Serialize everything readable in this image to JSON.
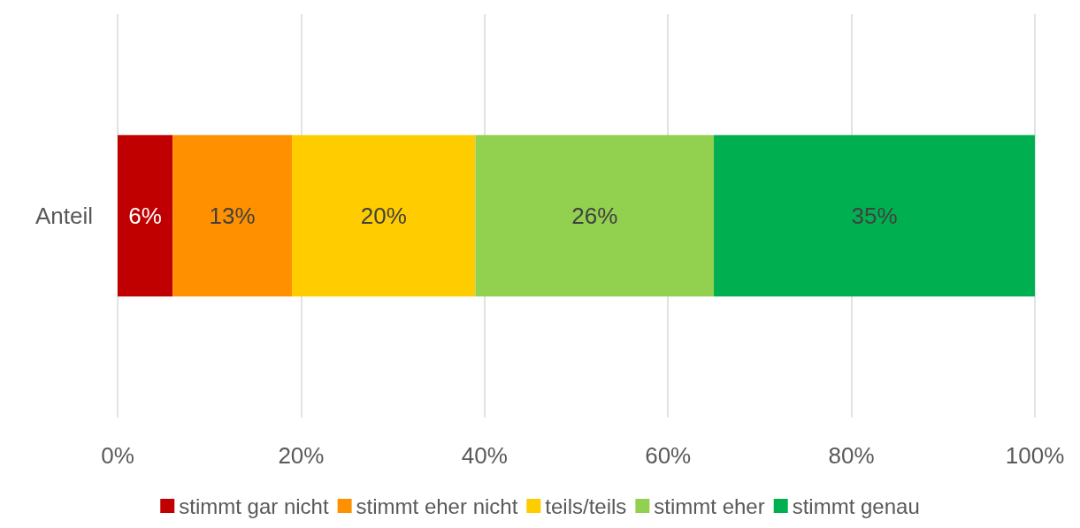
{
  "chart_data": {
    "type": "bar",
    "orientation": "horizontal",
    "stacked": true,
    "categories": [
      "Anteil"
    ],
    "series": [
      {
        "name": "stimmt gar nicht",
        "color": "#c00000",
        "values": [
          6
        ],
        "value_labels": [
          "6%"
        ]
      },
      {
        "name": "stimmt eher nicht",
        "color": "#ff9100",
        "values": [
          13
        ],
        "value_labels": [
          "13%"
        ]
      },
      {
        "name": "teils/teils",
        "color": "#ffcc00",
        "values": [
          20
        ],
        "value_labels": [
          "20%"
        ]
      },
      {
        "name": "stimmt eher",
        "color": "#92d050",
        "values": [
          26
        ],
        "value_labels": [
          "26%"
        ]
      },
      {
        "name": "stimmt genau",
        "color": "#00b050",
        "values": [
          35
        ],
        "value_labels": [
          "35%"
        ]
      }
    ],
    "xlim": [
      0,
      100
    ],
    "xticks": [
      {
        "value": 0,
        "label": "0%"
      },
      {
        "value": 20,
        "label": "20%"
      },
      {
        "value": 40,
        "label": "40%"
      },
      {
        "value": 60,
        "label": "60%"
      },
      {
        "value": 80,
        "label": "80%"
      },
      {
        "value": 100,
        "label": "100%"
      }
    ],
    "grid": "x",
    "legend": "bottom"
  }
}
